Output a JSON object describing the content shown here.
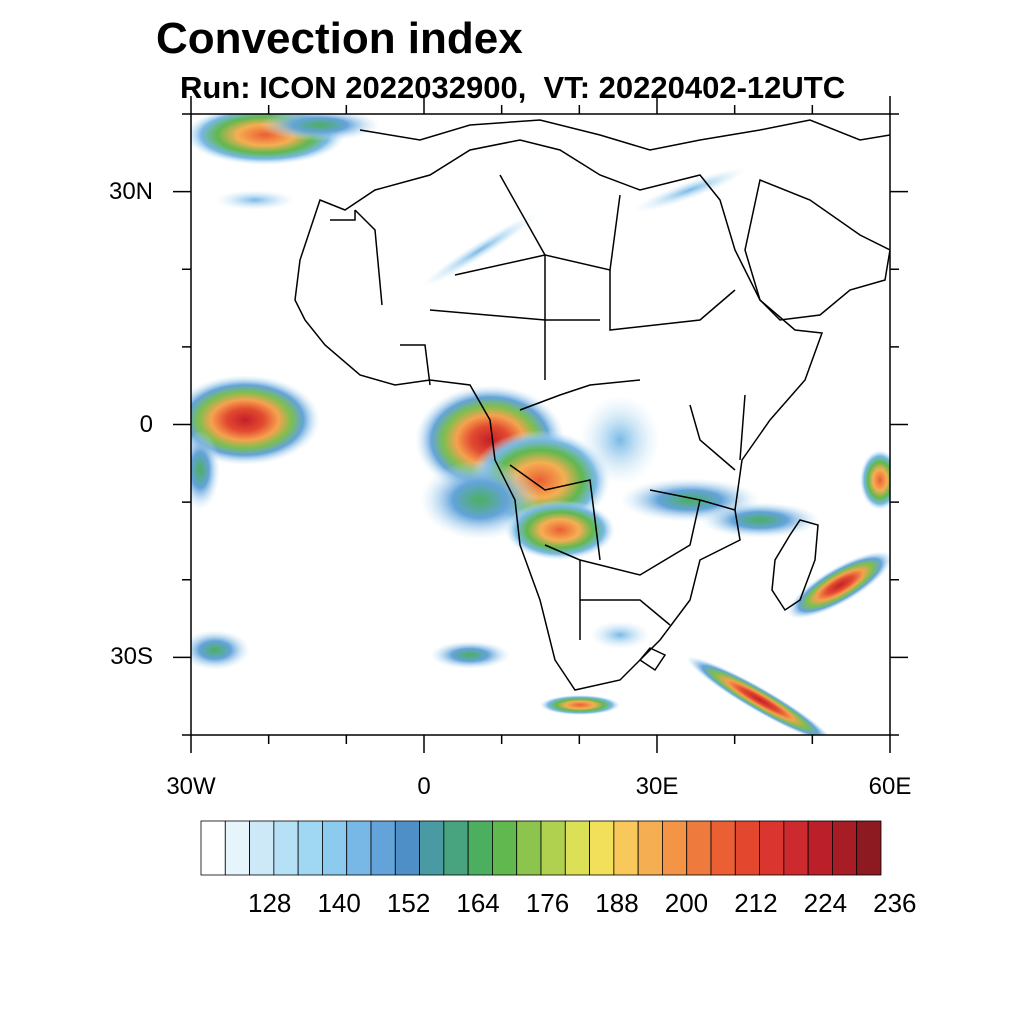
{
  "title": "Convection index",
  "subtitle": "Run: ICON 2022032900,  VT: 20220402-12UTC",
  "map": {
    "region": "Africa",
    "lon_range": [
      -30,
      60
    ],
    "lat_range": [
      -40,
      40
    ],
    "lat_tick_labels": [
      "30N",
      "0",
      "30S"
    ],
    "lon_tick_labels": [
      "30W",
      "0",
      "30E",
      "60E"
    ],
    "lat_ticks": [
      30,
      0,
      -30
    ],
    "lon_ticks": [
      -30,
      0,
      30,
      60
    ]
  },
  "colorbar": {
    "labels": [
      "128",
      "140",
      "152",
      "164",
      "176",
      "188",
      "200",
      "212",
      "224",
      "236"
    ],
    "colors": [
      "#ffffff",
      "#e6f4fb",
      "#cde9f8",
      "#b5e0f6",
      "#a0d8f4",
      "#8ccbee",
      "#78b8e6",
      "#63a3da",
      "#4f8fc7",
      "#4a9aa4",
      "#47a47e",
      "#4caf5f",
      "#60b84f",
      "#8cc44e",
      "#b0d050",
      "#dbe056",
      "#f2e05a",
      "#f8c85a",
      "#f6ae52",
      "#f39446",
      "#ef7a3e",
      "#ea5f34",
      "#e3482f",
      "#db3530",
      "#cc2a2e",
      "#bb202a",
      "#a61d26",
      "#8e1a21"
    ]
  }
}
